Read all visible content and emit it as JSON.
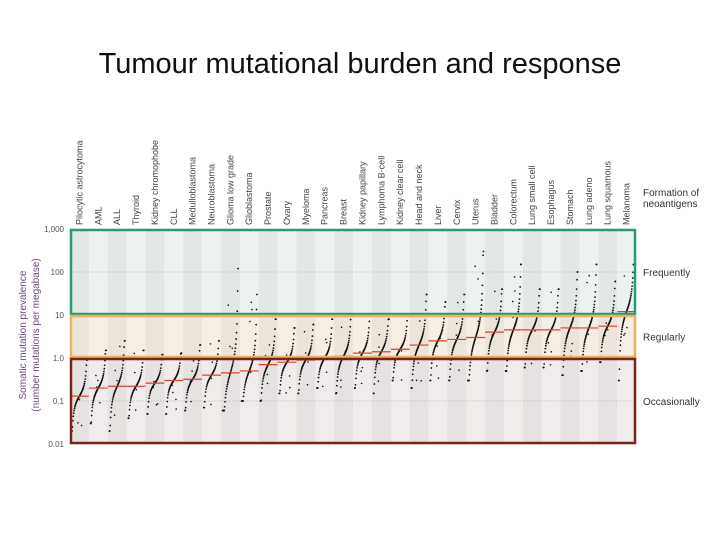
{
  "slide": {
    "title": "Tumour mutational burden and response"
  },
  "chart_data": {
    "type": "scatter",
    "title": "",
    "ylabel": "Somatic mutation prevalence",
    "ylabel_sub": "(number mutations per megabase)",
    "yscale": "log",
    "ylim": [
      0.01,
      1000
    ],
    "yticks": [
      "0.01",
      "0.1",
      "1.0",
      "10",
      "100",
      "1,000"
    ],
    "band_header": "Formation of neoantigens",
    "bands": [
      {
        "label": "Frequently",
        "range": [
          10,
          1000
        ],
        "color": "#2e9b6e"
      },
      {
        "label": "Regularly",
        "range": [
          1,
          10
        ],
        "color": "#e8b464"
      },
      {
        "label": "Occasionally",
        "range": [
          0.01,
          1
        ],
        "color": "#7a2418"
      }
    ],
    "marker_color": "#111111",
    "median_color": "#d9442b",
    "categories": [
      {
        "name": "Pilocytic astrocytoma",
        "median": 0.13,
        "min": 0.02,
        "max": 0.9,
        "n": 40
      },
      {
        "name": "AML",
        "median": 0.2,
        "min": 0.03,
        "max": 1.5,
        "n": 45
      },
      {
        "name": "ALL",
        "median": 0.22,
        "min": 0.02,
        "max": 2.5,
        "n": 40
      },
      {
        "name": "Thyroid",
        "median": 0.22,
        "min": 0.04,
        "max": 1.5,
        "n": 40
      },
      {
        "name": "Kidney chromophobe",
        "median": 0.26,
        "min": 0.05,
        "max": 1.2,
        "n": 35
      },
      {
        "name": "CLL",
        "median": 0.3,
        "min": 0.05,
        "max": 1.3,
        "n": 40
      },
      {
        "name": "Medulloblastoma",
        "median": 0.32,
        "min": 0.06,
        "max": 2,
        "n": 40
      },
      {
        "name": "Neuroblastoma",
        "median": 0.4,
        "min": 0.07,
        "max": 2.5,
        "n": 35
      },
      {
        "name": "Glioma low grade",
        "median": 0.45,
        "min": 0.06,
        "max": 120,
        "n": 40
      },
      {
        "name": "Glioblastoma",
        "median": 0.5,
        "min": 0.1,
        "max": 30,
        "n": 40
      },
      {
        "name": "Prostate",
        "median": 0.7,
        "min": 0.1,
        "max": 8,
        "n": 40
      },
      {
        "name": "Ovary",
        "median": 0.8,
        "min": 0.15,
        "max": 5,
        "n": 40
      },
      {
        "name": "Myeloma",
        "median": 0.9,
        "min": 0.15,
        "max": 6,
        "n": 40
      },
      {
        "name": "Pancreas",
        "median": 1,
        "min": 0.2,
        "max": 8,
        "n": 40
      },
      {
        "name": "Breast",
        "median": 1.1,
        "min": 0.15,
        "max": 10,
        "n": 45
      },
      {
        "name": "Kidney papillary",
        "median": 1.3,
        "min": 0.2,
        "max": 10,
        "n": 40
      },
      {
        "name": "Lymphoma B-cell",
        "median": 1.4,
        "min": 0.15,
        "max": 8,
        "n": 40
      },
      {
        "name": "Kidney clear cell",
        "median": 1.6,
        "min": 0.3,
        "max": 10,
        "n": 40
      },
      {
        "name": "Head and neck",
        "median": 2,
        "min": 0.2,
        "max": 30,
        "n": 45
      },
      {
        "name": "Liver",
        "median": 2.5,
        "min": 0.3,
        "max": 20,
        "n": 40
      },
      {
        "name": "Cervix",
        "median": 2.7,
        "min": 0.3,
        "max": 30,
        "n": 40
      },
      {
        "name": "Uterus",
        "median": 3,
        "min": 0.3,
        "max": 300,
        "n": 50
      },
      {
        "name": "Bladder",
        "median": 4,
        "min": 0.5,
        "max": 40,
        "n": 45
      },
      {
        "name": "Colorectum",
        "median": 4.5,
        "min": 0.5,
        "max": 150,
        "n": 50
      },
      {
        "name": "Lung small cell",
        "median": 4.5,
        "min": 0.6,
        "max": 40,
        "n": 40
      },
      {
        "name": "Esophagus",
        "median": 4.5,
        "min": 0.6,
        "max": 40,
        "n": 40
      },
      {
        "name": "Stomach",
        "median": 5,
        "min": 0.4,
        "max": 100,
        "n": 45
      },
      {
        "name": "Lung adeno",
        "median": 5,
        "min": 0.5,
        "max": 150,
        "n": 50
      },
      {
        "name": "Lung squamous",
        "median": 5.5,
        "min": 0.8,
        "max": 60,
        "n": 45
      },
      {
        "name": "Melanoma",
        "median": 12,
        "min": 0.3,
        "max": 150,
        "n": 50
      }
    ]
  }
}
